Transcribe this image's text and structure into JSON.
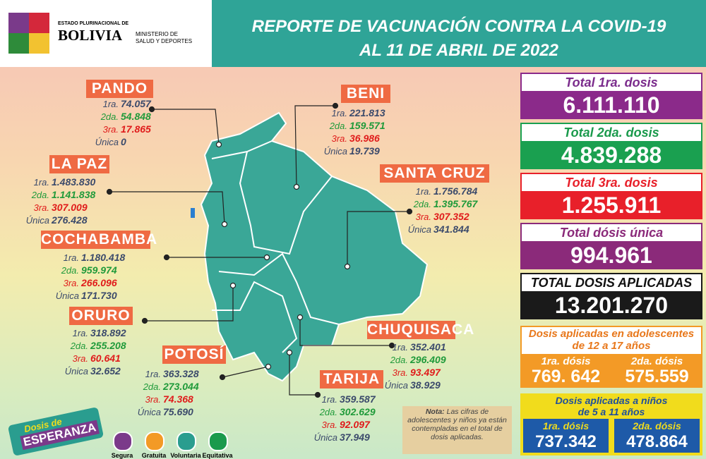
{
  "header": {
    "state": "ESTADO PLURINACIONAL DE",
    "country": "BOLIVIA",
    "ministry_1": "MINISTERIO DE",
    "ministry_2": "SALUD Y DEPORTES",
    "title_1": "REPORTE DE VACUNACIÓN CONTRA LA COVID-19",
    "title_2": "AL 11 DE ABRIL DE 2022"
  },
  "departments": [
    {
      "name": "PANDO",
      "doses": [
        {
          "label": "1ra.",
          "value": "74.057"
        },
        {
          "label": "2da.",
          "value": "54.848"
        },
        {
          "label": "3ra.",
          "value": "17.865"
        },
        {
          "label": "Única",
          "value": "0"
        }
      ]
    },
    {
      "name": "BENI",
      "doses": [
        {
          "label": "1ra.",
          "value": "221.813"
        },
        {
          "label": "2da.",
          "value": "159.571"
        },
        {
          "label": "3ra.",
          "value": "36.986"
        },
        {
          "label": "Única",
          "value": "19.739"
        }
      ]
    },
    {
      "name": "LA PAZ",
      "doses": [
        {
          "label": "1ra.",
          "value": "1.483.830"
        },
        {
          "label": "2da.",
          "value": "1.141.838"
        },
        {
          "label": "3ra.",
          "value": "307.009"
        },
        {
          "label": "Única",
          "value": "276.428"
        }
      ]
    },
    {
      "name": "SANTA CRUZ",
      "doses": [
        {
          "label": "1ra.",
          "value": "1.756.784"
        },
        {
          "label": "2da.",
          "value": "1.395.767"
        },
        {
          "label": "3ra.",
          "value": "307.352"
        },
        {
          "label": "Única",
          "value": "341.844"
        }
      ]
    },
    {
      "name": "COCHABAMBA",
      "doses": [
        {
          "label": "1ra.",
          "value": "1.180.418"
        },
        {
          "label": "2da.",
          "value": "959.974"
        },
        {
          "label": "3ra.",
          "value": "266.096"
        },
        {
          "label": "Única",
          "value": "171.730"
        }
      ]
    },
    {
      "name": "ORURO",
      "doses": [
        {
          "label": "1ra.",
          "value": "318.892"
        },
        {
          "label": "2da.",
          "value": "255.208"
        },
        {
          "label": "3ra.",
          "value": "60.641"
        },
        {
          "label": "Única",
          "value": "32.652"
        }
      ]
    },
    {
      "name": "CHUQUISACA",
      "doses": [
        {
          "label": "1ra.",
          "value": "352.401"
        },
        {
          "label": "2da.",
          "value": "296.409"
        },
        {
          "label": "3ra.",
          "value": "93.497"
        },
        {
          "label": "Única",
          "value": "38.929"
        }
      ]
    },
    {
      "name": "POTOSÍ",
      "doses": [
        {
          "label": "1ra.",
          "value": "363.328"
        },
        {
          "label": "2da.",
          "value": "273.044"
        },
        {
          "label": "3ra.",
          "value": "74.368"
        },
        {
          "label": "Única",
          "value": "75.690"
        }
      ]
    },
    {
      "name": "TARIJA",
      "doses": [
        {
          "label": "1ra.",
          "value": "359.587"
        },
        {
          "label": "2da.",
          "value": "302.629"
        },
        {
          "label": "3ra.",
          "value": "92.097"
        },
        {
          "label": "Única",
          "value": "37.949"
        }
      ]
    }
  ],
  "totals": [
    {
      "label": "Total 1ra. dosis",
      "value": "6.111.110"
    },
    {
      "label": "Total 2da. dosis",
      "value": "4.839.288"
    },
    {
      "label": "Total 3ra. dosis",
      "value": "1.255.911"
    },
    {
      "label": "Total dósis única",
      "value": "994.961"
    },
    {
      "label": "TOTAL DOSIS APLICADAS",
      "value": "13.201.270"
    }
  ],
  "adolescents": {
    "title": "Dosis aplicadas en adolescentes de 12 a 17 años",
    "first_label": "1ra. dósis",
    "first_value": "769. 642",
    "second_label": "2da. dósis",
    "second_value": "575.559"
  },
  "children": {
    "title": "Dosis aplicadas a niños de 5 a 11 años",
    "first_label": "1ra. dósis",
    "first_value": "737.342",
    "second_label": "2da. dósis",
    "second_value": "478.864"
  },
  "note": {
    "label": "Nota:",
    "text": "Las cifras de adolescentes y niños ya están contempladas en el total de dosis aplicadas."
  },
  "campaign": {
    "line_1": "Dosis de",
    "line_2": "ESPERANZA"
  },
  "icons": [
    "Segura",
    "Gratuita",
    "Voluntaria",
    "Equitativa"
  ]
}
